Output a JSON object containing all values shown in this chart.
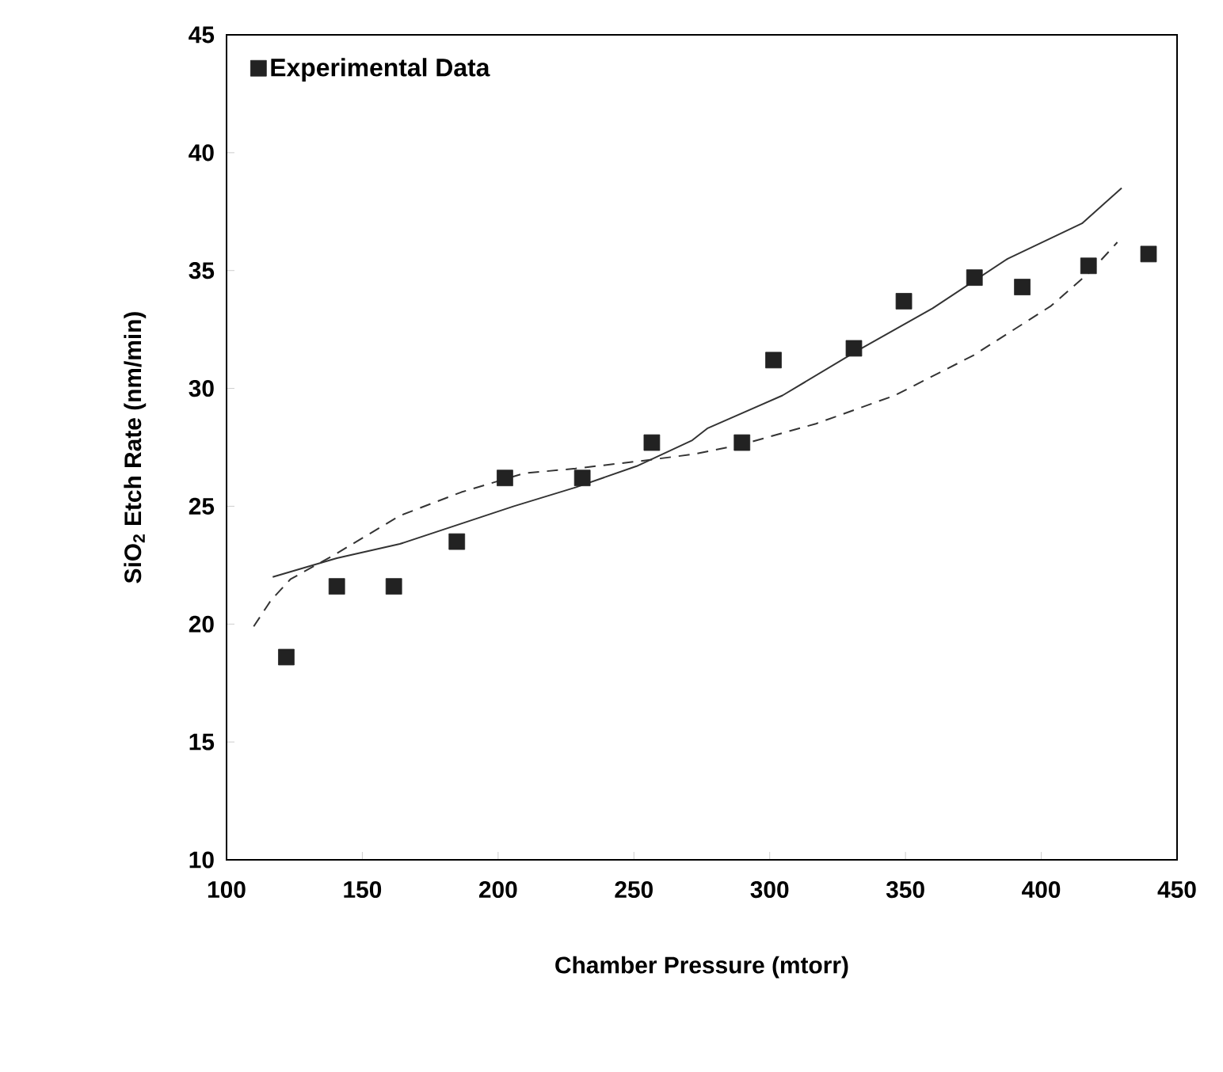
{
  "chart_data": {
    "type": "scatter",
    "xlabel": "Chamber Pressure  (mtorr)",
    "ylabel": "SiO$_{2}$ Etch Rate  (nm/min)",
    "xlim": [
      100,
      450
    ],
    "ylim": [
      10,
      45
    ],
    "xticks": [
      100,
      150,
      200,
      250,
      300,
      350,
      400,
      450
    ],
    "yticks": [
      10,
      15,
      20,
      25,
      30,
      35,
      40,
      45
    ],
    "legend": "top left",
    "series": [
      {
        "type": "scatter",
        "name": "Experimental Data",
        "color": "#222222",
        "marker": "square",
        "x": [
          122,
          140.6,
          161.6,
          184.8,
          202.5,
          231,
          256.6,
          289.8,
          301.4,
          331,
          349.4,
          375.4,
          393,
          417.4,
          439.5
        ],
        "values": [
          18.6,
          21.6,
          21.6,
          23.5,
          26.2,
          26.2,
          27.7,
          27.7,
          31.2,
          31.7,
          33.7,
          34.7,
          34.3,
          35.2,
          35.7
        ]
      },
      {
        "type": "line",
        "color": "#333333",
        "line_style": "solid",
        "x": [
          117,
          140.6,
          163.8,
          184.8,
          205.8,
          228.5,
          251,
          271.5,
          277,
          304.7,
          332.3,
          360,
          387.6,
          415,
          429.6
        ],
        "values": [
          22.0,
          22.8,
          23.4,
          24.2,
          25.0,
          25.8,
          26.7,
          27.8,
          28.3,
          29.7,
          31.6,
          33.4,
          35.5,
          37.0,
          38.5
        ]
      },
      {
        "type": "line",
        "color": "#333333",
        "line_style": "dashed",
        "x": [
          110,
          116.3,
          123.5,
          140.6,
          163.8,
          186.5,
          209.7,
          228.5,
          251,
          271.5,
          289,
          317,
          346,
          375,
          403.6,
          418.5,
          428
        ],
        "values": [
          19.9,
          21.0,
          21.9,
          23.0,
          24.6,
          25.6,
          26.4,
          26.6,
          26.9,
          27.2,
          27.6,
          28.5,
          29.7,
          31.4,
          33.5,
          35.0,
          36.2
        ]
      }
    ]
  }
}
